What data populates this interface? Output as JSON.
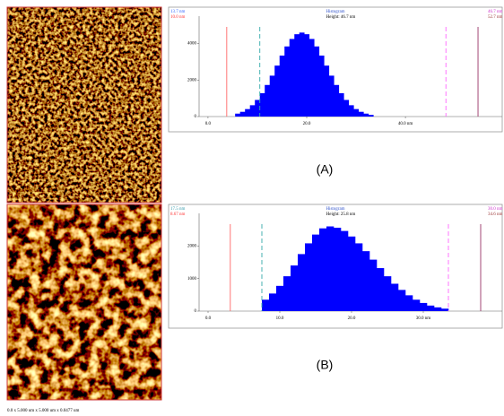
{
  "chart_data": [
    {
      "type": "histogram",
      "title": "Histogram",
      "subtitle": "Height: 46.7 nm",
      "color": "#0000ff",
      "annotations": [
        {
          "text": "13.7 nm",
          "color": "#3366ff"
        },
        {
          "text": "10.0 nm",
          "color": "#ff3333"
        },
        {
          "text": "46.7 nm",
          "color": "#cc33cc"
        },
        {
          "text": "52.7 nm",
          "color": "#993333"
        }
      ],
      "cursors": [
        {
          "value": 3.8,
          "color": "#ff6666",
          "dashed": false
        },
        {
          "value": 10.5,
          "color": "#33aaaa",
          "dashed": true
        },
        {
          "value": 48.2,
          "color": "#ff66ff",
          "dashed": true
        },
        {
          "value": 54.7,
          "color": "#993366",
          "dashed": false
        }
      ],
      "bins": [
        5.5,
        6.5,
        7.5,
        8.5,
        9.5,
        10.5,
        11.5,
        12.5,
        13.5,
        14.5,
        15.5,
        16.5,
        17.5,
        18.5,
        19.5,
        20.5,
        21.5,
        22.5,
        23.5,
        24.5,
        25.5,
        26.5,
        27.5,
        28.5,
        29.5,
        30.5,
        31.5,
        32.5,
        33.5
      ],
      "values": [
        160,
        260,
        410,
        620,
        910,
        1280,
        1730,
        2240,
        2790,
        3340,
        3840,
        4250,
        4510,
        4600,
        4510,
        4250,
        3840,
        3340,
        2790,
        2240,
        1730,
        1280,
        910,
        620,
        410,
        260,
        160,
        90
      ],
      "xlim": [
        -1.8,
        59.6
      ],
      "xticks": [
        {
          "value": 0,
          "label": "0.0"
        },
        {
          "value": 20,
          "label": "20.0"
        },
        {
          "value": 40,
          "label": "40.0 nm"
        }
      ],
      "ylim": [
        0,
        5500
      ],
      "yticks": [
        0,
        2000,
        4000
      ]
    },
    {
      "type": "histogram",
      "title": "Histogram",
      "subtitle": "Height: 25.8 nm",
      "color": "#0000ff",
      "annotations": [
        {
          "text": "17.5 nm",
          "color": "#3399aa"
        },
        {
          "text": "8.67 nm",
          "color": "#ff3333"
        },
        {
          "text": "30.0 nm",
          "color": "#cc33cc"
        },
        {
          "text": "34.6 nm",
          "color": "#993333"
        }
      ],
      "cursors": [
        {
          "value": 3.1,
          "color": "#ff6666",
          "dashed": false
        },
        {
          "value": 7.5,
          "color": "#33aaaa",
          "dashed": true
        },
        {
          "value": 33.5,
          "color": "#ff66ff",
          "dashed": true
        },
        {
          "value": 38,
          "color": "#993366",
          "dashed": false
        }
      ],
      "bins": [
        7.5,
        8.5,
        9.5,
        10.5,
        11.5,
        12.5,
        13.5,
        14.5,
        15.5,
        16.5,
        17.5,
        18.5,
        19.5,
        20.5,
        21.5,
        22.5,
        23.5,
        24.5,
        25.5,
        26.5,
        27.5,
        28.5,
        29.5,
        30.5,
        31.5,
        32.5,
        33.5
      ],
      "values": [
        350,
        540,
        775,
        1070,
        1400,
        1750,
        2080,
        2350,
        2540,
        2600,
        2560,
        2460,
        2290,
        2080,
        1840,
        1580,
        1320,
        1070,
        840,
        650,
        485,
        350,
        250,
        170,
        115,
        75
      ],
      "xlim": [
        -1.25,
        41
      ],
      "xticks": [
        {
          "value": 0,
          "label": "0.0"
        },
        {
          "value": 10,
          "label": "10.0"
        },
        {
          "value": 20,
          "label": "20.0"
        },
        {
          "value": 30,
          "label": "30.0 nm"
        }
      ],
      "ylim": [
        0,
        3000
      ],
      "yticks": [
        0,
        1000,
        2000
      ]
    }
  ],
  "figure": {
    "labels": [
      "(A)",
      "(B)"
    ],
    "caption": "0.0 x 5.000 um x 5.000 um x 0.0477 um"
  }
}
